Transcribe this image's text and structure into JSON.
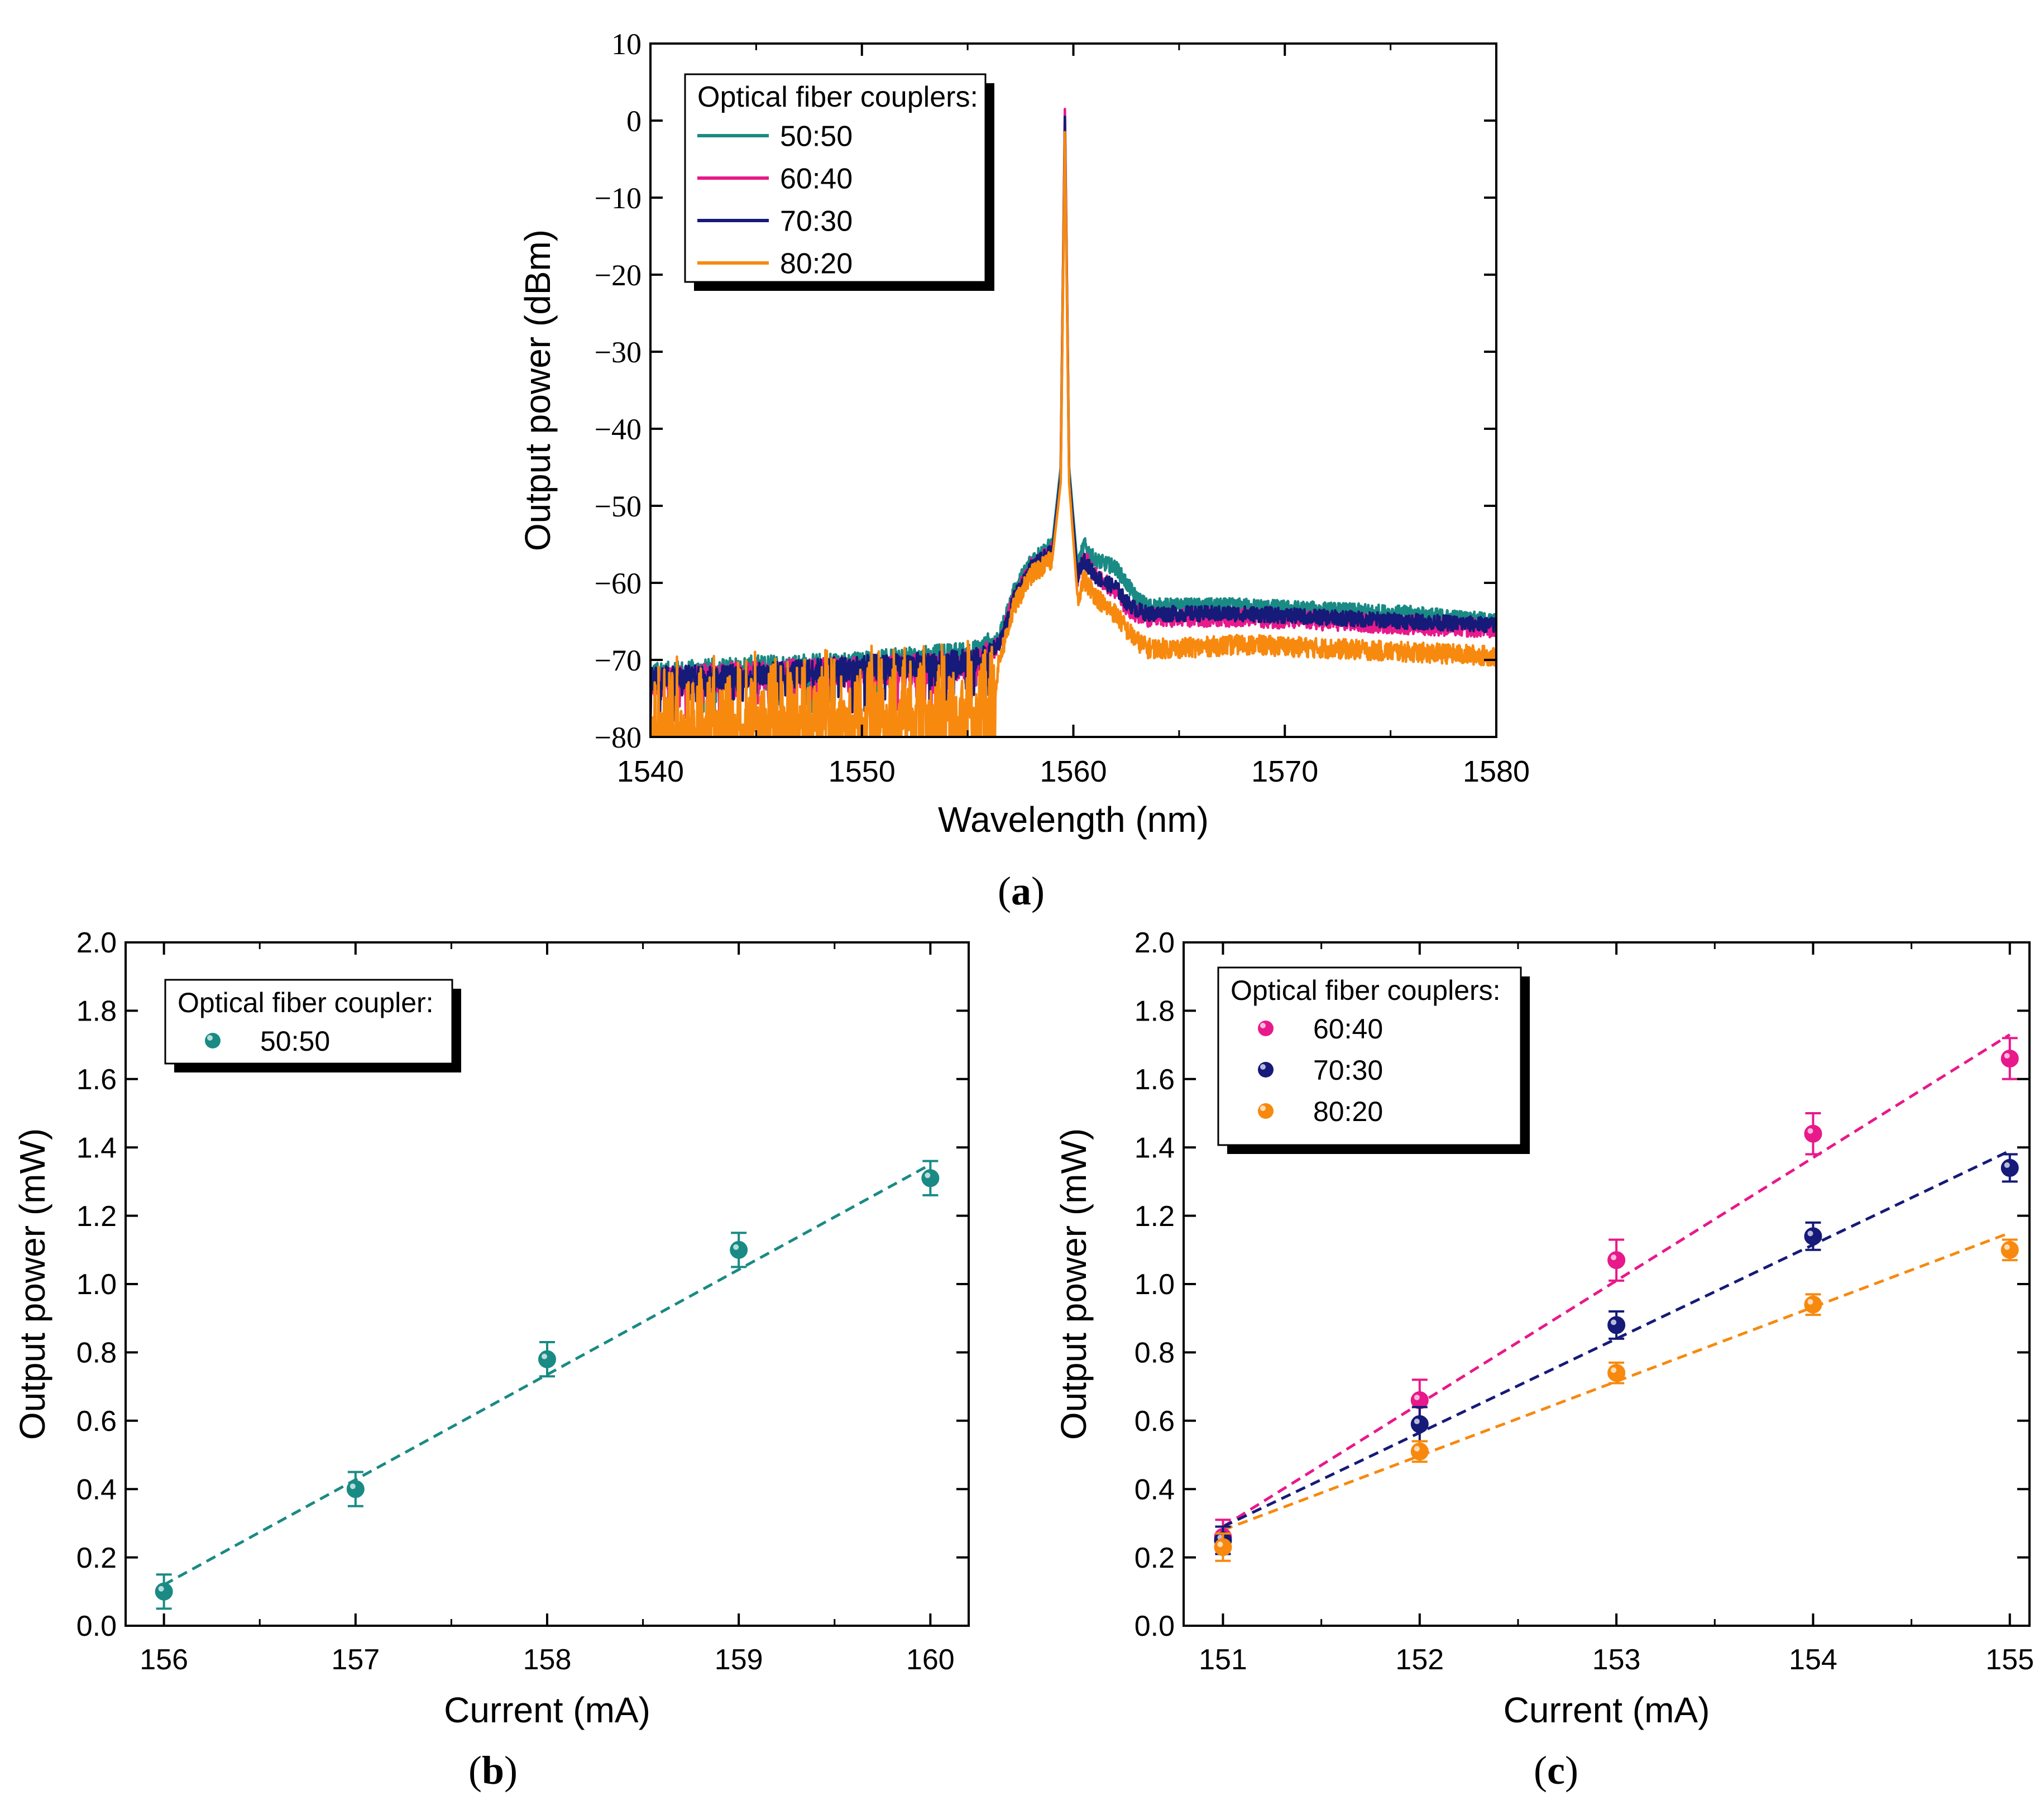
{
  "chart_data": [
    {
      "id": "a",
      "type": "line",
      "panel_label": "a",
      "title": "",
      "xlabel": "Wavelength (nm)",
      "ylabel": "Output power (dBm)",
      "xlim": [
        1540,
        1580
      ],
      "ylim": [
        -80,
        10
      ],
      "xticks": [
        1540,
        1550,
        1560,
        1570,
        1580
      ],
      "yticks": [
        -80,
        -70,
        -60,
        -50,
        -40,
        -30,
        -20,
        -10,
        0,
        10
      ],
      "xtick_labels": [
        "1540",
        "1550",
        "1560",
        "1570",
        "1580"
      ],
      "ytick_labels": [
        "−80",
        "−70",
        "−60",
        "−50",
        "−40",
        "−30",
        "−20",
        "−10",
        "0",
        "10"
      ],
      "legend": {
        "title": "Optical fiber couplers:",
        "placement": "top-left"
      },
      "series": [
        {
          "name": "50:50",
          "color": "#1a8a84",
          "x": [
            1540,
            1545,
            1550,
            1554,
            1555.5,
            1556.5,
            1557.2,
            1558,
            1559,
            1559.4,
            1559.6,
            1559.8,
            1560.2,
            1560.5,
            1561,
            1561.5,
            1562,
            1562.5,
            1563,
            1563.5,
            1565,
            1568,
            1572,
            1576,
            1580
          ],
          "y": [
            -72,
            -71,
            -70.5,
            -69.5,
            -69,
            -67,
            -61,
            -57,
            -55,
            -45,
            -1,
            -45,
            -58,
            -55,
            -57,
            -57.5,
            -58,
            -60,
            -62,
            -63,
            -63,
            -63,
            -63.5,
            -64,
            -65
          ],
          "noise": 1.0
        },
        {
          "name": "60:40",
          "color": "#e8198b",
          "x": [
            1540,
            1545,
            1550,
            1554,
            1555.5,
            1556.5,
            1557.2,
            1558,
            1559,
            1559.4,
            1559.6,
            1559.8,
            1560.2,
            1560.5,
            1561,
            1561.5,
            1562,
            1562.5,
            1563,
            1563.5,
            1565,
            1568,
            1572,
            1576,
            1580
          ],
          "y": [
            -73,
            -72,
            -71.5,
            -71,
            -70.5,
            -68,
            -62,
            -58,
            -56,
            -46,
            1.5,
            -46,
            -60,
            -56.5,
            -59,
            -60,
            -61,
            -63,
            -64,
            -64.5,
            -64.5,
            -64.5,
            -65,
            -65.5,
            -66
          ],
          "noise": 1.2
        },
        {
          "name": "70:30",
          "color": "#161a78",
          "x": [
            1540,
            1545,
            1550,
            1554,
            1555.5,
            1556.5,
            1557.2,
            1558,
            1559,
            1559.4,
            1559.6,
            1559.8,
            1560.2,
            1560.5,
            1561,
            1561.5,
            1562,
            1562.5,
            1563,
            1563.5,
            1565,
            1568,
            1572,
            1576,
            1580
          ],
          "y": [
            -72.5,
            -72,
            -71,
            -70.5,
            -70,
            -68,
            -62,
            -58,
            -56,
            -46,
            0.5,
            -46,
            -59,
            -57,
            -59,
            -60,
            -60.5,
            -62.5,
            -63.5,
            -64,
            -64,
            -64,
            -64.5,
            -65,
            -65.5
          ],
          "noise": 1.0
        },
        {
          "name": "80:20",
          "color": "#f7890f",
          "x": [
            1540,
            1545,
            1550,
            1554,
            1555.5,
            1556.2,
            1556.5,
            1557.2,
            1558,
            1559,
            1559.4,
            1559.6,
            1559.8,
            1560.2,
            1560.5,
            1561,
            1561.5,
            1562,
            1562.5,
            1563,
            1563.5,
            1565,
            1568,
            1572,
            1576,
            1580
          ],
          "y": [
            -79,
            -78,
            -77.5,
            -77,
            -76.5,
            -76,
            -70,
            -63,
            -59,
            -57,
            -47,
            -1.5,
            -47,
            -62,
            -59.5,
            -61.5,
            -63,
            -64,
            -66,
            -67.5,
            -68.5,
            -68.5,
            -68,
            -68.5,
            -69,
            -69.5
          ],
          "noise": 1.3,
          "spiky_until": 1556.3
        }
      ]
    },
    {
      "id": "b",
      "type": "scatter",
      "panel_label": "b",
      "title": "",
      "xlabel": "Current (mA)",
      "ylabel": "Output power (mW)",
      "xlim": [
        155.8,
        160.2
      ],
      "ylim": [
        0,
        2
      ],
      "xticks": [
        156,
        157,
        158,
        159,
        160
      ],
      "yticks": [
        0,
        0.2,
        0.4,
        0.6,
        0.8,
        1.0,
        1.2,
        1.4,
        1.6,
        1.8,
        2.0
      ],
      "xtick_labels": [
        "156",
        "157",
        "158",
        "159",
        "160"
      ],
      "ytick_labels": [
        "0.0",
        "0.2",
        "0.4",
        "0.6",
        "0.8",
        "1.0",
        "1.2",
        "1.4",
        "1.6",
        "1.8",
        "2.0"
      ],
      "legend": {
        "title": "Optical fiber coupler:",
        "placement": "top-left"
      },
      "series": [
        {
          "name": "50:50",
          "color": "#1a8a84",
          "x": [
            156,
            157,
            158,
            159,
            160
          ],
          "y": [
            0.1,
            0.4,
            0.78,
            1.1,
            1.31
          ],
          "err": [
            0.05,
            0.05,
            0.05,
            0.05,
            0.05
          ],
          "fit": [
            [
              156,
              0.12
            ],
            [
              160,
              1.35
            ]
          ]
        }
      ]
    },
    {
      "id": "c",
      "type": "scatter",
      "panel_label": "c",
      "title": "",
      "xlabel": "Current (mA)",
      "ylabel": "Output power (mW)",
      "xlim": [
        150.8,
        155.1
      ],
      "ylim": [
        0,
        2
      ],
      "xticks": [
        151,
        152,
        153,
        154,
        155
      ],
      "yticks": [
        0,
        0.2,
        0.4,
        0.6,
        0.8,
        1.0,
        1.2,
        1.4,
        1.6,
        1.8,
        2.0
      ],
      "xtick_labels": [
        "151",
        "152",
        "153",
        "154",
        "155"
      ],
      "ytick_labels": [
        "0.0",
        "0.2",
        "0.4",
        "0.6",
        "0.8",
        "1.0",
        "1.2",
        "1.4",
        "1.6",
        "1.8",
        "2.0"
      ],
      "legend": {
        "title": "Optical fiber couplers:",
        "placement": "top-left"
      },
      "series": [
        {
          "name": "60:40",
          "color": "#e8198b",
          "x": [
            151,
            152,
            153,
            154,
            155
          ],
          "y": [
            0.26,
            0.66,
            1.07,
            1.44,
            1.66
          ],
          "err": [
            0.05,
            0.06,
            0.06,
            0.06,
            0.06
          ],
          "fit": [
            [
              151,
              0.29
            ],
            [
              155,
              1.73
            ]
          ]
        },
        {
          "name": "70:30",
          "color": "#161a78",
          "x": [
            151,
            152,
            153,
            154,
            155
          ],
          "y": [
            0.25,
            0.59,
            0.88,
            1.14,
            1.34
          ],
          "err": [
            0.04,
            0.05,
            0.04,
            0.04,
            0.04
          ],
          "fit": [
            [
              151,
              0.29
            ],
            [
              155,
              1.39
            ]
          ]
        },
        {
          "name": "80:20",
          "color": "#f7890f",
          "x": [
            151,
            152,
            153,
            154,
            155
          ],
          "y": [
            0.23,
            0.51,
            0.74,
            0.94,
            1.1
          ],
          "err": [
            0.04,
            0.03,
            0.03,
            0.03,
            0.03
          ],
          "fit": [
            [
              151,
              0.28
            ],
            [
              155,
              1.15
            ]
          ]
        }
      ]
    }
  ]
}
